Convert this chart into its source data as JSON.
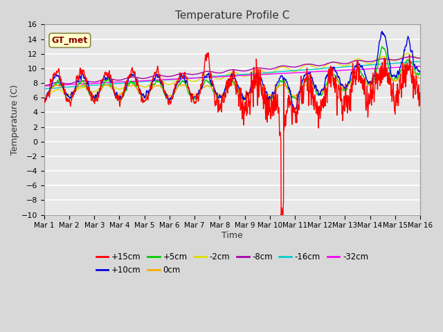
{
  "title": "Temperature Profile C",
  "xlabel": "Time",
  "ylabel": "Temperature (C)",
  "ylim": [
    -10,
    16
  ],
  "xlim": [
    0,
    15
  ],
  "yticks": [
    -10,
    -8,
    -6,
    -4,
    -2,
    0,
    2,
    4,
    6,
    8,
    10,
    12,
    14,
    16
  ],
  "xtick_labels": [
    "Mar 1",
    "Mar 2",
    "Mar 3",
    "Mar 4",
    "Mar 5",
    "Mar 6",
    "Mar 7",
    "Mar 8",
    "Mar 9",
    "Mar 10",
    "Mar 11",
    "Mar 12",
    "Mar 13",
    "Mar 14",
    "Mar 15",
    "Mar 16"
  ],
  "background_color": "#d8d8d8",
  "plot_bg_color": "#e8e8e8",
  "grid_color": "#ffffff",
  "legend_label": "GT_met",
  "colors": {
    "+15cm": "#ff0000",
    "+10cm": "#0000dd",
    "+5cm": "#00cc00",
    "0cm": "#ffaa00",
    "-2cm": "#dddd00",
    "-8cm": "#aa00aa",
    "-16cm": "#00cccc",
    "-32cm": "#ff00ff"
  },
  "legend_ncol_row1": 6,
  "legend_entries_row1": [
    "+15cm",
    "+10cm",
    "+5cm",
    "0cm",
    "-2cm",
    "-8cm"
  ],
  "legend_entries_row2": [
    "-16cm",
    "-32cm"
  ]
}
